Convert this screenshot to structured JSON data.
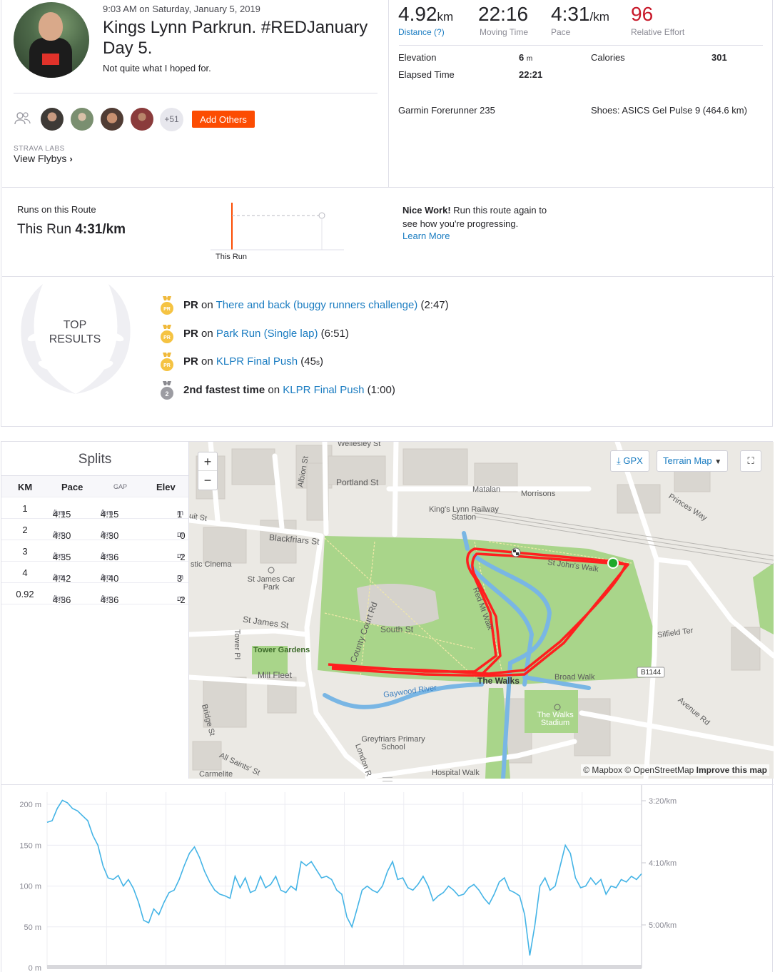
{
  "activity": {
    "datetime": "9:03 AM on Saturday, January 5, 2019",
    "title": "Kings Lynn Parkrun. #REDJanuary Day 5.",
    "description": "Not quite what I hoped for.",
    "kudos_more": "+51",
    "add_others": "Add Others",
    "labs": "STRAVA LABS",
    "view_flybys": "View Flybys"
  },
  "stats": {
    "distance_value": "4.92",
    "distance_unit": "km",
    "distance_label": "Distance",
    "distance_help": "(?)",
    "moving_time": "22:16",
    "moving_time_label": "Moving Time",
    "pace_value": "4:31",
    "pace_unit": "/km",
    "pace_label": "Pace",
    "relative_effort": "96",
    "relative_effort_label": "Relative Effort",
    "elevation_label": "Elevation",
    "elevation_value": "6",
    "elevation_unit": "m",
    "calories_label": "Calories",
    "calories_value": "301",
    "elapsed_label": "Elapsed Time",
    "elapsed_value": "22:21",
    "device": "Garmin Forerunner 235",
    "shoes": "Shoes: ASICS Gel Pulse 9 (464.6 km)"
  },
  "route": {
    "heading": "Runs on this Route",
    "this_run_label": "This Run",
    "this_run_value": "4:31/km",
    "marker_label": "This Run",
    "nice_work": "Nice Work!",
    "nice_work_text": "Run this route again to see how you're progressing.",
    "learn_more": "Learn More"
  },
  "top_results": {
    "title_line1": "TOP",
    "title_line2": "RESULTS",
    "items": [
      {
        "medal": "PR",
        "prefix": "PR",
        "on": "on",
        "segment": "There and back (buggy runners challenge)",
        "time": "(2:47)"
      },
      {
        "medal": "PR",
        "prefix": "PR",
        "on": "on",
        "segment": "Park Run (Single lap)",
        "time": "(6:51)"
      },
      {
        "medal": "PR",
        "prefix": "PR",
        "on": "on",
        "segment": "KLPR Final Push",
        "time": "(45",
        "time_unit": "s",
        "time_close": ")"
      },
      {
        "medal": "2",
        "prefix": "2nd fastest time",
        "on": "on",
        "segment": "KLPR Final Push",
        "time": "(1:00)"
      }
    ]
  },
  "splits": {
    "title": "Splits",
    "headers": {
      "km": "KM",
      "pace": "Pace",
      "gap": "GAP",
      "elev": "Elev"
    },
    "rows": [
      {
        "km": "1",
        "pace": "4:15",
        "gap": "4:15",
        "elev": "1"
      },
      {
        "km": "2",
        "pace": "4:30",
        "gap": "4:30",
        "elev": "-0"
      },
      {
        "km": "3",
        "pace": "4:35",
        "gap": "4:36",
        "elev": "-2"
      },
      {
        "km": "4",
        "pace": "4:42",
        "gap": "4:40",
        "elev": "3"
      },
      {
        "km": "0.92",
        "pace": "4:36",
        "gap": "4:36",
        "elev": "-2"
      }
    ],
    "pace_unit": "/km",
    "elev_unit": "m"
  },
  "map": {
    "gpx": "GPX",
    "terrain": "Terrain Map",
    "attribution_mapbox": "© Mapbox",
    "attribution_osm": "© OpenStreetMap",
    "improve": "Improve this map",
    "labels": {
      "portland": "Portland St",
      "matalan": "Matalan",
      "morrisons": "Morrisons",
      "station": "King's Lynn Railway Station",
      "blackfriars": "Blackfriars St",
      "cinema": "stic Cinema",
      "carpark": "St James Car Park",
      "stjames": "St James St",
      "tower_gardens": "Tower Gardens",
      "towerpl": "Tower Pl",
      "millfleet": "Mill Fleet",
      "southst": "South St",
      "countycourt": "County Court Rd",
      "redmount": "Red Mt Walk",
      "stjohns": "St John's Walk",
      "thewalks": "The Walks",
      "broadwalk": "Broad Walk",
      "gaywood": "Gaywood River",
      "stadium": "The Walks Stadium",
      "greyfriars": "Greyfriars Primary School",
      "silfield": "Silfield Ter",
      "b1144": "B1144",
      "avenue": "Avenue Rd",
      "princes": "Princes Way",
      "bridge": "Bridge St",
      "allsaints": "All Saints' St",
      "carmelite": "Carmelite",
      "london": "London R",
      "hospital": "Hospital Walk",
      "albion": "Albion St",
      "quit": "uit St",
      "wellesley": "Wellesley St"
    }
  },
  "chart_data": {
    "type": "line",
    "series": [
      {
        "values": [
          178,
          180,
          195,
          205,
          202,
          195,
          192,
          186,
          180,
          162,
          150,
          125,
          110,
          108,
          113,
          100,
          108,
          97,
          80,
          58,
          55,
          72,
          65,
          80,
          92,
          95,
          108,
          125,
          140,
          148,
          135,
          118,
          105,
          95,
          90,
          88,
          85,
          112,
          98,
          110,
          92,
          95,
          112,
          98,
          102,
          112,
          95,
          92,
          100,
          95,
          130,
          125,
          130,
          120,
          110,
          112,
          108,
          95,
          90,
          62,
          50,
          72,
          95,
          100,
          95,
          92,
          100,
          118,
          130,
          108,
          110,
          98,
          95,
          102,
          112,
          100,
          82,
          88,
          92,
          100,
          95,
          88,
          90,
          98,
          102,
          95,
          85,
          78,
          90,
          105,
          110,
          95,
          92,
          88,
          65,
          15,
          52,
          100,
          110,
          95,
          100,
          125,
          150,
          140,
          110,
          98,
          100,
          110,
          102,
          108,
          90,
          100,
          98,
          108,
          105,
          112,
          108,
          115
        ]
      }
    ],
    "yticks_left": [
      "200 m",
      "150 m",
      "100 m",
      "50 m",
      "0 m"
    ],
    "yticks_right": [
      "3:20/km",
      "4:10/km",
      "5:00/km"
    ],
    "ylim": [
      0,
      215
    ]
  }
}
